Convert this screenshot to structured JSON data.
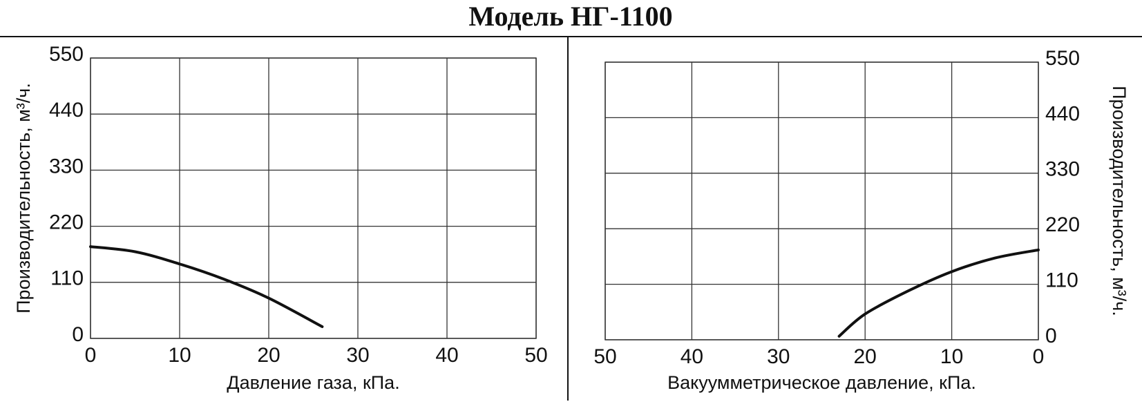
{
  "title": "Модель НГ-1100",
  "chart_data": [
    {
      "type": "line",
      "xlabel": "Давление газа, кПа.",
      "ylabel": "Производительность, м³/ч.",
      "x": [
        0,
        5,
        10,
        15,
        20,
        26
      ],
      "series": [
        {
          "color": "#111111",
          "values": [
            180,
            170,
            146,
            116,
            79,
            23
          ]
        }
      ],
      "xlim": [
        0,
        50
      ],
      "xticks": [
        0,
        10,
        20,
        30,
        40,
        50
      ],
      "ylim": [
        0,
        550
      ],
      "yticks": [
        0,
        110,
        220,
        330,
        440,
        550
      ],
      "grid": true,
      "y_axis_side": "left"
    },
    {
      "type": "line",
      "xlabel": "Вакуумметрическое давление, кПа.",
      "ylabel": "Производительность, м³/ч.",
      "x": [
        23,
        20,
        15,
        10,
        5,
        0
      ],
      "series": [
        {
          "color": "#111111",
          "values": [
            7,
            51,
            97,
            135,
            162,
            178
          ]
        }
      ],
      "xlim": [
        50,
        0
      ],
      "xticks": [
        50,
        40,
        30,
        20,
        10,
        0
      ],
      "ylim": [
        0,
        550
      ],
      "yticks": [
        0,
        110,
        220,
        330,
        440,
        550
      ],
      "grid": true,
      "y_axis_side": "right"
    }
  ]
}
